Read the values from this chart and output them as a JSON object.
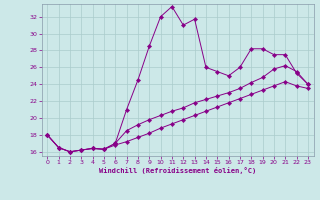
{
  "xlabel": "Windchill (Refroidissement éolien,°C)",
  "bg_color": "#cce8e8",
  "grid_color": "#aacccc",
  "line_color": "#880088",
  "xlim": [
    -0.5,
    23.5
  ],
  "ylim": [
    15.5,
    33.5
  ],
  "yticks": [
    16,
    18,
    20,
    22,
    24,
    26,
    28,
    30,
    32
  ],
  "xticks": [
    0,
    1,
    2,
    3,
    4,
    5,
    6,
    7,
    8,
    9,
    10,
    11,
    12,
    13,
    14,
    15,
    16,
    17,
    18,
    19,
    20,
    21,
    22,
    23
  ],
  "series1_x": [
    0,
    1,
    2,
    3,
    4,
    5,
    6,
    7,
    8,
    9,
    10,
    11,
    12,
    13,
    14,
    15,
    16,
    17,
    18,
    19,
    20,
    21,
    22,
    23
  ],
  "series1_y": [
    18.0,
    16.5,
    16.0,
    16.2,
    16.4,
    16.3,
    17.0,
    21.0,
    24.5,
    28.5,
    32.0,
    33.2,
    31.0,
    31.7,
    26.0,
    25.5,
    25.0,
    26.0,
    28.2,
    28.2,
    27.5,
    27.5,
    25.3,
    24.0
  ],
  "series2_x": [
    0,
    1,
    2,
    3,
    4,
    5,
    6,
    7,
    8,
    9,
    10,
    11,
    12,
    13,
    14,
    15,
    16,
    17,
    18,
    19,
    20,
    21,
    22,
    23
  ],
  "series2_y": [
    18.0,
    16.5,
    16.0,
    16.2,
    16.4,
    16.3,
    17.0,
    18.5,
    19.2,
    19.8,
    20.3,
    20.8,
    21.2,
    21.8,
    22.2,
    22.6,
    23.0,
    23.5,
    24.2,
    24.8,
    25.8,
    26.2,
    25.5,
    24.0
  ],
  "series3_x": [
    0,
    1,
    2,
    3,
    4,
    5,
    6,
    7,
    8,
    9,
    10,
    11,
    12,
    13,
    14,
    15,
    16,
    17,
    18,
    19,
    20,
    21,
    22,
    23
  ],
  "series3_y": [
    18.0,
    16.5,
    16.0,
    16.2,
    16.4,
    16.3,
    16.8,
    17.2,
    17.7,
    18.2,
    18.8,
    19.3,
    19.8,
    20.3,
    20.8,
    21.3,
    21.8,
    22.3,
    22.8,
    23.3,
    23.8,
    24.3,
    23.8,
    23.5
  ]
}
